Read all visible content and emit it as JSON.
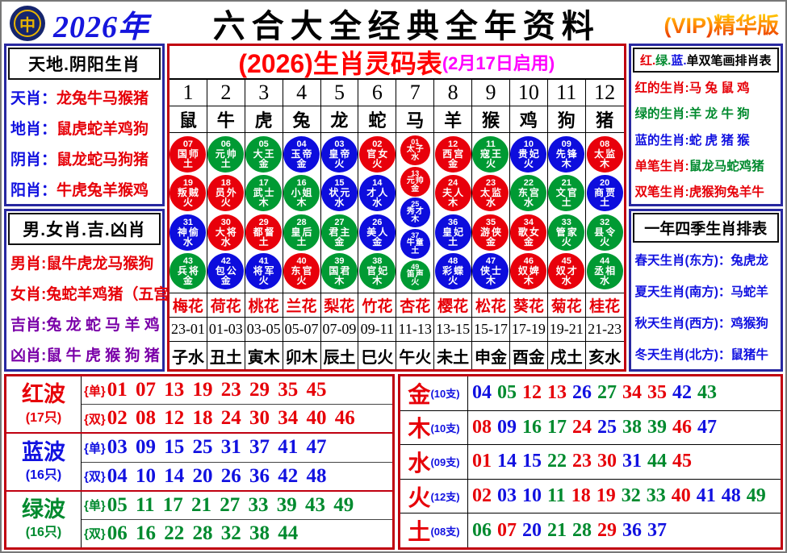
{
  "colors": {
    "red": "#e8000b",
    "green": "#009a33",
    "blue": "#0d0ddd",
    "magenta": "#ff00ff",
    "purple": "#7a00a8",
    "navy_border": "#2828a0",
    "red_border": "#c00010",
    "vip_orange": "#ff7700"
  },
  "header": {
    "logo_glyph": "中",
    "year": "2026年",
    "title": "六合大全经典全年资料",
    "vip": "(VIP)精华版"
  },
  "left_panel": {
    "section1": {
      "title": "天地.阴阳生肖",
      "rows": [
        {
          "label": "天肖：",
          "value": "龙兔牛马猴猪"
        },
        {
          "label": "地肖：",
          "value": "鼠虎蛇羊鸡狗"
        },
        {
          "label": "阴肖：",
          "value": "鼠龙蛇马狗猪"
        },
        {
          "label": "阳肖：",
          "value": "牛虎兔羊猴鸡"
        }
      ]
    },
    "section2": {
      "title": "男.女肖.吉.凶肖",
      "rows": [
        {
          "label": "男肖:",
          "value": "鼠牛虎龙马猴狗"
        },
        {
          "label": "女肖:",
          "value": "兔蛇羊鸡猪（五宫）"
        },
        {
          "label": "吉肖:",
          "value": "兔 龙 蛇 马 羊 鸡"
        },
        {
          "label": "凶肖:",
          "value": "鼠 牛 虎 猴 狗 猪"
        }
      ]
    }
  },
  "main_table": {
    "title": "(2026)生肖灵码表",
    "subtitle": "(2月17日启用)",
    "column_numbers": [
      "1",
      "2",
      "3",
      "4",
      "5",
      "6",
      "7",
      "8",
      "9",
      "10",
      "11",
      "12"
    ],
    "zodiacs": [
      "鼠",
      "牛",
      "虎",
      "兔",
      "龙",
      "蛇",
      "马",
      "羊",
      "猴",
      "鸡",
      "狗",
      "猪"
    ],
    "circle_columns": [
      [
        {
          "num": "07",
          "name": "国师",
          "elem": "土",
          "color": "red"
        },
        {
          "num": "19",
          "name": "叛贼",
          "elem": "火",
          "color": "red"
        },
        {
          "num": "31",
          "name": "神偷",
          "elem": "水",
          "color": "blue"
        },
        {
          "num": "43",
          "name": "兵将",
          "elem": "金",
          "color": "green"
        }
      ],
      [
        {
          "num": "06",
          "name": "元帅",
          "elem": "土",
          "color": "green"
        },
        {
          "num": "18",
          "name": "员外",
          "elem": "火",
          "color": "red"
        },
        {
          "num": "30",
          "name": "大将",
          "elem": "水",
          "color": "red"
        },
        {
          "num": "42",
          "name": "包公",
          "elem": "金",
          "color": "blue"
        }
      ],
      [
        {
          "num": "05",
          "name": "大王",
          "elem": "金",
          "color": "green"
        },
        {
          "num": "17",
          "name": "武士",
          "elem": "木",
          "color": "green"
        },
        {
          "num": "29",
          "name": "都督",
          "elem": "土",
          "color": "red"
        },
        {
          "num": "41",
          "name": "将军",
          "elem": "火",
          "color": "blue"
        }
      ],
      [
        {
          "num": "04",
          "name": "玉帝",
          "elem": "金",
          "color": "blue"
        },
        {
          "num": "16",
          "name": "小姐",
          "elem": "木",
          "color": "green"
        },
        {
          "num": "28",
          "name": "皇后",
          "elem": "土",
          "color": "green"
        },
        {
          "num": "40",
          "name": "东官",
          "elem": "火",
          "color": "red"
        }
      ],
      [
        {
          "num": "03",
          "name": "皇帝",
          "elem": "火",
          "color": "blue"
        },
        {
          "num": "15",
          "name": "状元",
          "elem": "水",
          "color": "blue"
        },
        {
          "num": "27",
          "name": "君主",
          "elem": "金",
          "color": "green"
        },
        {
          "num": "39",
          "name": "国君",
          "elem": "木",
          "color": "green"
        }
      ],
      [
        {
          "num": "02",
          "name": "官女",
          "elem": "火",
          "color": "red"
        },
        {
          "num": "14",
          "name": "才人",
          "elem": "水",
          "color": "blue"
        },
        {
          "num": "26",
          "name": "美人",
          "elem": "金",
          "color": "blue"
        },
        {
          "num": "38",
          "name": "官妃",
          "elem": "木",
          "color": "green"
        }
      ],
      [
        {
          "num": "01",
          "name": "太子",
          "elem": "水",
          "color": "red"
        },
        {
          "num": "13",
          "name": "元帅",
          "elem": "金",
          "color": "red"
        },
        {
          "num": "25",
          "name": "秀才",
          "elem": "木",
          "color": "blue"
        },
        {
          "num": "37",
          "name": "牛童",
          "elem": "土",
          "color": "blue"
        },
        {
          "num": "49",
          "name": "笛声",
          "elem": "火",
          "color": "green"
        }
      ],
      [
        {
          "num": "12",
          "name": "西宫",
          "elem": "金",
          "color": "red"
        },
        {
          "num": "24",
          "name": "夫人",
          "elem": "木",
          "color": "red"
        },
        {
          "num": "36",
          "name": "皇妃",
          "elem": "土",
          "color": "blue"
        },
        {
          "num": "48",
          "name": "彩蝶",
          "elem": "火",
          "color": "blue"
        }
      ],
      [
        {
          "num": "11",
          "name": "寇王",
          "elem": "火",
          "color": "green"
        },
        {
          "num": "23",
          "name": "太监",
          "elem": "水",
          "color": "red"
        },
        {
          "num": "35",
          "name": "游侠",
          "elem": "金",
          "color": "red"
        },
        {
          "num": "47",
          "name": "侠士",
          "elem": "木",
          "color": "blue"
        }
      ],
      [
        {
          "num": "10",
          "name": "贵妃",
          "elem": "火",
          "color": "blue"
        },
        {
          "num": "22",
          "name": "东宫",
          "elem": "水",
          "color": "green"
        },
        {
          "num": "34",
          "name": "歌女",
          "elem": "金",
          "color": "red"
        },
        {
          "num": "46",
          "name": "奴婢",
          "elem": "木",
          "color": "red"
        }
      ],
      [
        {
          "num": "09",
          "name": "先锋",
          "elem": "木",
          "color": "blue"
        },
        {
          "num": "21",
          "name": "文官",
          "elem": "土",
          "color": "green"
        },
        {
          "num": "33",
          "name": "管家",
          "elem": "火",
          "color": "green"
        },
        {
          "num": "45",
          "name": "奴才",
          "elem": "水",
          "color": "red"
        }
      ],
      [
        {
          "num": "08",
          "name": "太监",
          "elem": "木",
          "color": "red"
        },
        {
          "num": "20",
          "name": "商贾",
          "elem": "土",
          "color": "blue"
        },
        {
          "num": "32",
          "name": "县令",
          "elem": "火",
          "color": "green"
        },
        {
          "num": "44",
          "name": "丞相",
          "elem": "水",
          "color": "green"
        }
      ]
    ],
    "flowers": [
      "梅花",
      "荷花",
      "桃花",
      "兰花",
      "梨花",
      "竹花",
      "杏花",
      "樱花",
      "松花",
      "葵花",
      "菊花",
      "桂花"
    ],
    "hours": [
      "23-01",
      "01-03",
      "03-05",
      "05-07",
      "07-09",
      "09-11",
      "11-13",
      "13-15",
      "15-17",
      "17-19",
      "19-21",
      "21-23"
    ],
    "branches": [
      "子水",
      "丑土",
      "寅木",
      "卯木",
      "辰土",
      "巳火",
      "午火",
      "未土",
      "申金",
      "酉金",
      "戌土",
      "亥水"
    ]
  },
  "right_panel": {
    "section1": {
      "title_parts": [
        {
          "text": "红.",
          "color": "red"
        },
        {
          "text": "绿.",
          "color": "green"
        },
        {
          "text": "蓝.",
          "color": "blue"
        },
        {
          "text": "单双笔画排肖表",
          "color": "black"
        }
      ],
      "rows": [
        {
          "label": "红的生肖:",
          "value": "马 兔 鼠 鸡",
          "label_color": "red",
          "value_color": "red"
        },
        {
          "label": "绿的生肖:",
          "value": "羊 龙 牛 狗",
          "label_color": "green",
          "value_color": "green"
        },
        {
          "label": "蓝的生肖:",
          "value": "蛇 虎 猪 猴",
          "label_color": "blue",
          "value_color": "blue"
        },
        {
          "label": "单笔生肖:",
          "value": "鼠龙马蛇鸡猪",
          "label_color": "red",
          "value_color": "green"
        },
        {
          "label": "双笔生肖:",
          "value": "虎猴狗兔羊牛",
          "label_color": "red",
          "value_color": "red"
        }
      ]
    },
    "section2": {
      "title": "一年四季生肖排表",
      "rows": [
        {
          "label": "春天生肖(东方)：",
          "value": "兔虎龙"
        },
        {
          "label": "夏天生肖(南方)：",
          "value": "马蛇羊"
        },
        {
          "label": "秋天生肖(西方)：",
          "value": "鸡猴狗"
        },
        {
          "label": "冬天生肖(北方)：",
          "value": "鼠猪牛"
        }
      ]
    }
  },
  "bottom_left": {
    "odd_tag": "{单}",
    "even_tag": "{双}",
    "waves": [
      {
        "name": "红波",
        "count": "(17只)",
        "color": "red",
        "odd": "01 07 13 19 23 29 35 45",
        "even": "02 08 12 18 24 30 34 40 46"
      },
      {
        "name": "蓝波",
        "count": "(16只)",
        "color": "blue",
        "odd": "03 09 15 25 31 37 41 47",
        "even": "04 10 14 20 26 36 42 48"
      },
      {
        "name": "绿波",
        "count": "(16只)",
        "color": "green",
        "odd": "05 11 17 21 27 33 39 43 49",
        "even": "06 16 22 28 32 38 44"
      }
    ]
  },
  "bottom_right": {
    "elements": [
      {
        "name": "金",
        "count": "(10支)",
        "numbers": [
          {
            "n": "04",
            "c": "blue"
          },
          {
            "n": "05",
            "c": "green"
          },
          {
            "n": "12",
            "c": "red"
          },
          {
            "n": "13",
            "c": "red"
          },
          {
            "n": "26",
            "c": "blue"
          },
          {
            "n": "27",
            "c": "green"
          },
          {
            "n": "34",
            "c": "red"
          },
          {
            "n": "35",
            "c": "red"
          },
          {
            "n": "42",
            "c": "blue"
          },
          {
            "n": "43",
            "c": "green"
          }
        ]
      },
      {
        "name": "木",
        "count": "(10支)",
        "numbers": [
          {
            "n": "08",
            "c": "red"
          },
          {
            "n": "09",
            "c": "blue"
          },
          {
            "n": "16",
            "c": "green"
          },
          {
            "n": "17",
            "c": "green"
          },
          {
            "n": "24",
            "c": "red"
          },
          {
            "n": "25",
            "c": "blue"
          },
          {
            "n": "38",
            "c": "green"
          },
          {
            "n": "39",
            "c": "green"
          },
          {
            "n": "46",
            "c": "red"
          },
          {
            "n": "47",
            "c": "blue"
          }
        ]
      },
      {
        "name": "水",
        "count": "(09支)",
        "numbers": [
          {
            "n": "01",
            "c": "red"
          },
          {
            "n": "14",
            "c": "blue"
          },
          {
            "n": "15",
            "c": "blue"
          },
          {
            "n": "22",
            "c": "green"
          },
          {
            "n": "23",
            "c": "red"
          },
          {
            "n": "30",
            "c": "red"
          },
          {
            "n": "31",
            "c": "blue"
          },
          {
            "n": "44",
            "c": "green"
          },
          {
            "n": "45",
            "c": "red"
          }
        ]
      },
      {
        "name": "火",
        "count": "(12支)",
        "numbers": [
          {
            "n": "02",
            "c": "red"
          },
          {
            "n": "03",
            "c": "blue"
          },
          {
            "n": "10",
            "c": "blue"
          },
          {
            "n": "11",
            "c": "green"
          },
          {
            "n": "18",
            "c": "red"
          },
          {
            "n": "19",
            "c": "red"
          },
          {
            "n": "32",
            "c": "green"
          },
          {
            "n": "33",
            "c": "green"
          },
          {
            "n": "40",
            "c": "red"
          },
          {
            "n": "41",
            "c": "blue"
          },
          {
            "n": "48",
            "c": "blue"
          },
          {
            "n": "49",
            "c": "green"
          }
        ]
      },
      {
        "name": "土",
        "count": "(08支)",
        "numbers": [
          {
            "n": "06",
            "c": "green"
          },
          {
            "n": "07",
            "c": "red"
          },
          {
            "n": "20",
            "c": "blue"
          },
          {
            "n": "21",
            "c": "green"
          },
          {
            "n": "28",
            "c": "green"
          },
          {
            "n": "29",
            "c": "red"
          },
          {
            "n": "36",
            "c": "blue"
          },
          {
            "n": "37",
            "c": "blue"
          }
        ]
      }
    ]
  }
}
